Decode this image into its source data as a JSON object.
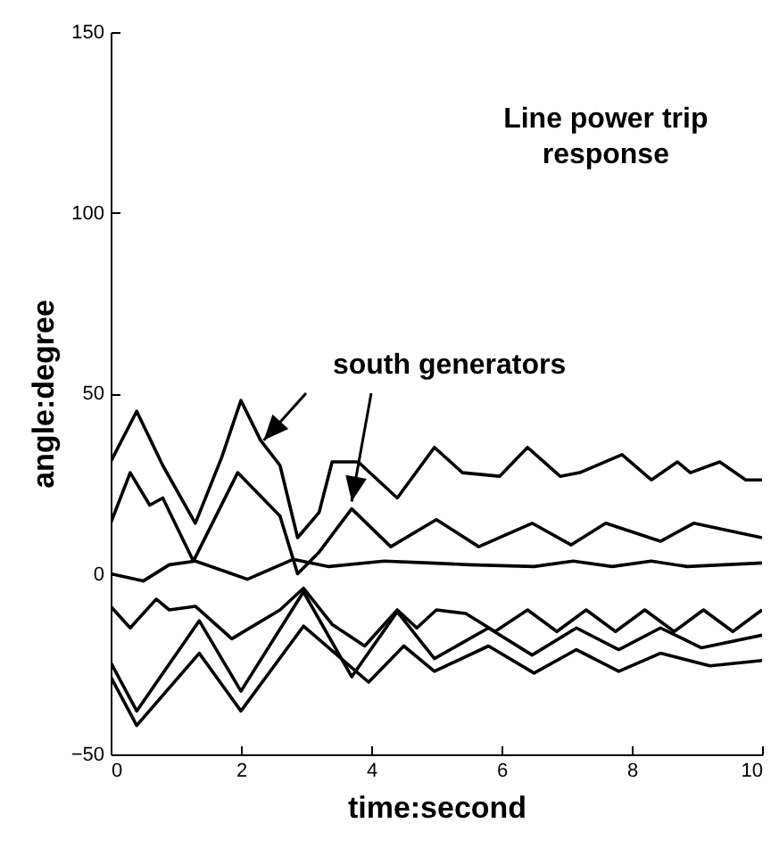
{
  "chart_data": {
    "type": "line",
    "xlabel": "time:second",
    "ylabel": "angle:degree",
    "annotations": [
      "Line power trip response",
      {
        "text": "south generators",
        "x": 2.35,
        "y": 37
      }
    ],
    "xlim": [
      0,
      10
    ],
    "ylim": [
      -50,
      150
    ],
    "xticks": [
      0,
      2,
      4,
      6,
      8,
      10
    ],
    "yticks": [
      -50,
      0,
      50,
      100,
      150
    ],
    "grid": false,
    "marker": "none",
    "line_style": "solid",
    "series": [
      {
        "color": "#000000",
        "x": [
          0,
          0.4,
          0.8,
          1.3,
          1.7,
          2.0,
          2.3,
          2.6,
          2.87,
          3.2,
          3.4,
          3.8,
          4.4,
          4.97,
          5.4,
          5.97,
          6.4,
          6.9,
          7.2,
          7.85,
          8.3,
          8.7,
          8.9,
          9.35,
          9.75,
          10
        ],
        "values": [
          31,
          45,
          30,
          14,
          32,
          48,
          37,
          30,
          10,
          17,
          31,
          31,
          21,
          35,
          28,
          27,
          35,
          27,
          28,
          33,
          26,
          31,
          28,
          31,
          26,
          26
        ]
      },
      {
        "color": "#000000",
        "x": [
          0,
          0.3,
          0.6,
          0.8,
          1.27,
          1.95,
          2.6,
          2.87,
          3.2,
          3.7,
          4.3,
          5.0,
          5.65,
          6.47,
          7.07,
          7.6,
          8.44,
          8.95,
          10
        ],
        "values": [
          14,
          28,
          19,
          21,
          3.5,
          28,
          16,
          0,
          6,
          18,
          7.5,
          15,
          7.5,
          14,
          8,
          14,
          9,
          14,
          10
        ]
      },
      {
        "color": "#000000",
        "x": [
          0,
          0.5,
          0.9,
          1.3,
          2.1,
          2.8,
          3.35,
          4.2,
          4.9,
          5.5,
          6.5,
          7.1,
          7.7,
          8.3,
          8.85,
          10
        ],
        "values": [
          0,
          -2,
          2.5,
          3.5,
          -1.5,
          4,
          2,
          3.5,
          3,
          2.5,
          2,
          3.5,
          2,
          3.5,
          2,
          3
        ]
      },
      {
        "color": "#000000",
        "x": [
          0,
          0.3,
          0.7,
          0.9,
          1.3,
          1.86,
          2.6,
          2.96,
          3.4,
          3.9,
          4.4,
          4.7,
          5.0,
          5.45,
          5.9,
          6.4,
          6.85,
          7.3,
          7.75,
          8.2,
          8.65,
          9.1,
          9.55,
          10
        ],
        "values": [
          -9,
          -15,
          -7,
          -10,
          -9,
          -18,
          -10,
          -4,
          -14,
          -20,
          -10,
          -15,
          -10,
          -11,
          -16,
          -10,
          -16,
          -10,
          -16,
          -10,
          -16,
          -10,
          -16,
          -10
        ]
      },
      {
        "color": "#000000",
        "x": [
          0,
          0.4,
          1.36,
          2.0,
          2.96,
          3.7,
          4.4,
          4.97,
          5.8,
          6.47,
          7.15,
          7.8,
          8.44,
          9.07,
          10
        ],
        "values": [
          -24.5,
          -38,
          -13,
          -32.5,
          -5,
          -28.5,
          -10.5,
          -23.5,
          -15,
          -22.5,
          -15,
          -21,
          -15,
          -20.5,
          -17
        ]
      },
      {
        "color": "#000000",
        "x": [
          0,
          0.4,
          1.36,
          2.0,
          2.96,
          3.96,
          4.5,
          4.97,
          5.8,
          6.5,
          7.15,
          7.8,
          8.44,
          9.2,
          10
        ],
        "values": [
          -28.5,
          -42,
          -22,
          -38,
          -14.5,
          -30,
          -20,
          -27,
          -20,
          -27.5,
          -21,
          -27,
          -22,
          -25.5,
          -24
        ]
      }
    ]
  }
}
